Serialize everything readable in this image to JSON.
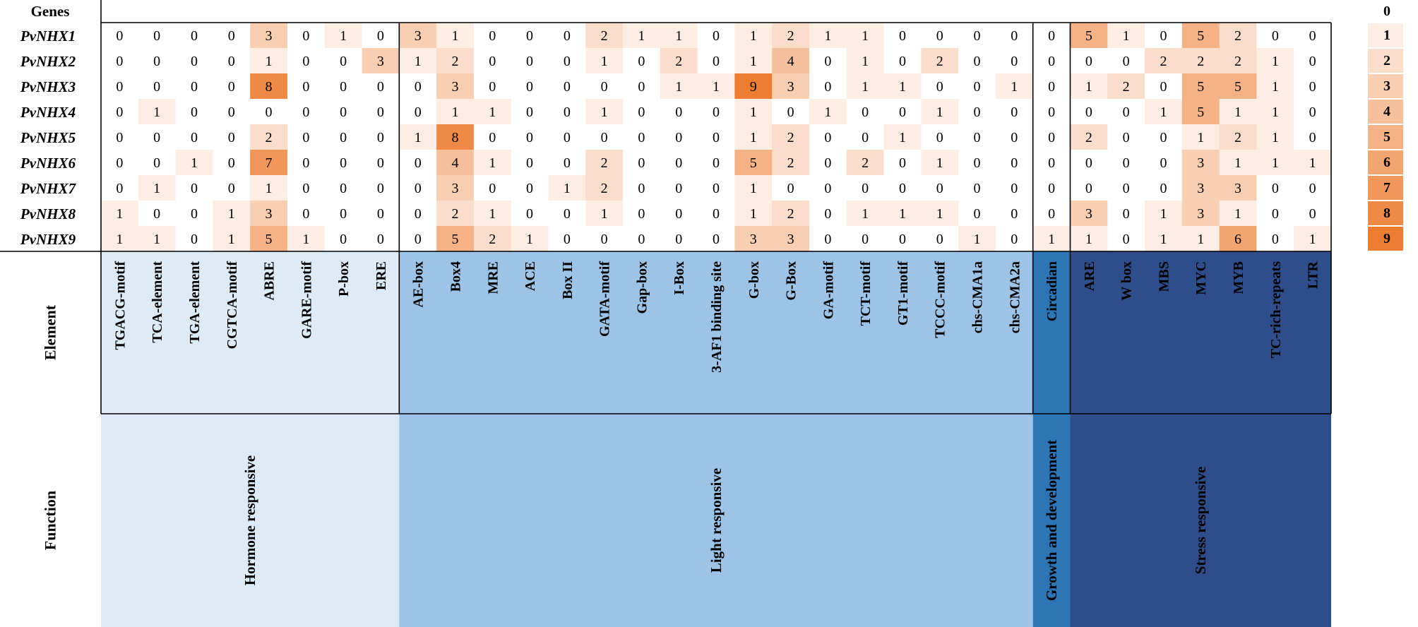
{
  "chart_data": {
    "type": "heatmap",
    "row_header": "Genes",
    "element_header": "Element",
    "function_header": "Function",
    "rows": [
      "PvNHX1",
      "PvNHX2",
      "PvNHX3",
      "PvNHX4",
      "PvNHX5",
      "PvNHX6",
      "PvNHX7",
      "PvNHX8",
      "PvNHX9"
    ],
    "columns": [
      "TGACG-motif",
      "TCA-element",
      "TGA-element",
      "CGTCA-motif",
      "ABRE",
      "GARE-motif",
      "P-box",
      "ERE",
      "AE-box",
      "Box4",
      "MRE",
      "ACE",
      "Box II",
      "GATA-motif",
      "Gap-box",
      "I-Box",
      "3-AF1 binding site",
      "G-box",
      "G-Box",
      "GA-motif",
      "TCT-motif",
      "GT1-motif",
      "TCCC-motif",
      "chs-CMA1a",
      "chs-CMA2a",
      "Circadian",
      "ARE",
      "W box",
      "MBS",
      "MYC",
      "MYB",
      "TC-rich-repeats",
      "LTR"
    ],
    "values": [
      [
        0,
        0,
        0,
        0,
        3,
        0,
        1,
        0,
        3,
        1,
        0,
        0,
        0,
        2,
        1,
        1,
        0,
        1,
        2,
        1,
        1,
        0,
        0,
        0,
        0,
        0,
        5,
        1,
        0,
        5,
        2,
        0,
        0
      ],
      [
        0,
        0,
        0,
        0,
        1,
        0,
        0,
        3,
        1,
        2,
        0,
        0,
        0,
        1,
        0,
        2,
        0,
        1,
        4,
        0,
        1,
        0,
        2,
        0,
        0,
        0,
        0,
        0,
        2,
        2,
        2,
        1,
        0
      ],
      [
        0,
        0,
        0,
        0,
        8,
        0,
        0,
        0,
        0,
        3,
        0,
        0,
        0,
        0,
        0,
        1,
        1,
        9,
        3,
        0,
        1,
        1,
        0,
        0,
        1,
        0,
        1,
        2,
        0,
        5,
        5,
        1,
        0
      ],
      [
        0,
        1,
        0,
        0,
        0,
        0,
        0,
        0,
        0,
        1,
        1,
        0,
        0,
        1,
        0,
        0,
        0,
        1,
        0,
        1,
        0,
        0,
        1,
        0,
        0,
        0,
        0,
        0,
        1,
        5,
        1,
        1,
        0
      ],
      [
        0,
        0,
        0,
        0,
        2,
        0,
        0,
        0,
        1,
        8,
        0,
        0,
        0,
        0,
        0,
        0,
        0,
        1,
        2,
        0,
        0,
        1,
        0,
        0,
        0,
        0,
        2,
        0,
        0,
        1,
        2,
        1,
        0
      ],
      [
        0,
        0,
        1,
        0,
        7,
        0,
        0,
        0,
        0,
        4,
        1,
        0,
        0,
        2,
        0,
        0,
        0,
        5,
        2,
        0,
        2,
        0,
        1,
        0,
        0,
        0,
        0,
        0,
        0,
        3,
        1,
        1,
        1
      ],
      [
        0,
        1,
        0,
        0,
        1,
        0,
        0,
        0,
        0,
        3,
        0,
        0,
        1,
        2,
        0,
        0,
        0,
        1,
        0,
        0,
        0,
        0,
        0,
        0,
        0,
        0,
        0,
        0,
        0,
        3,
        3,
        0,
        0
      ],
      [
        1,
        0,
        0,
        1,
        3,
        0,
        0,
        0,
        0,
        2,
        1,
        0,
        0,
        1,
        0,
        0,
        0,
        1,
        2,
        0,
        1,
        1,
        1,
        0,
        0,
        0,
        3,
        0,
        1,
        3,
        1,
        0,
        0
      ],
      [
        1,
        1,
        0,
        1,
        5,
        1,
        0,
        0,
        0,
        5,
        2,
        1,
        0,
        0,
        0,
        0,
        0,
        3,
        3,
        0,
        0,
        0,
        0,
        1,
        0,
        1,
        1,
        0,
        1,
        1,
        6,
        0,
        1
      ]
    ],
    "groups": [
      {
        "function": "Hormone responsive",
        "span": 8,
        "color": "#ddebf7"
      },
      {
        "function": "Light responsive",
        "span": 17,
        "color": "#9dc3e6"
      },
      {
        "function": "Growth and development",
        "span": 1,
        "color": "#2e75b6"
      },
      {
        "function": "Stress responsive",
        "span": 7,
        "color": "#2f4d8a"
      }
    ],
    "legend_values": [
      0,
      1,
      2,
      3,
      4,
      5,
      6,
      7,
      8,
      9
    ],
    "color_scale": {
      "low": "#ffffff",
      "high": "#ed7d31"
    }
  }
}
